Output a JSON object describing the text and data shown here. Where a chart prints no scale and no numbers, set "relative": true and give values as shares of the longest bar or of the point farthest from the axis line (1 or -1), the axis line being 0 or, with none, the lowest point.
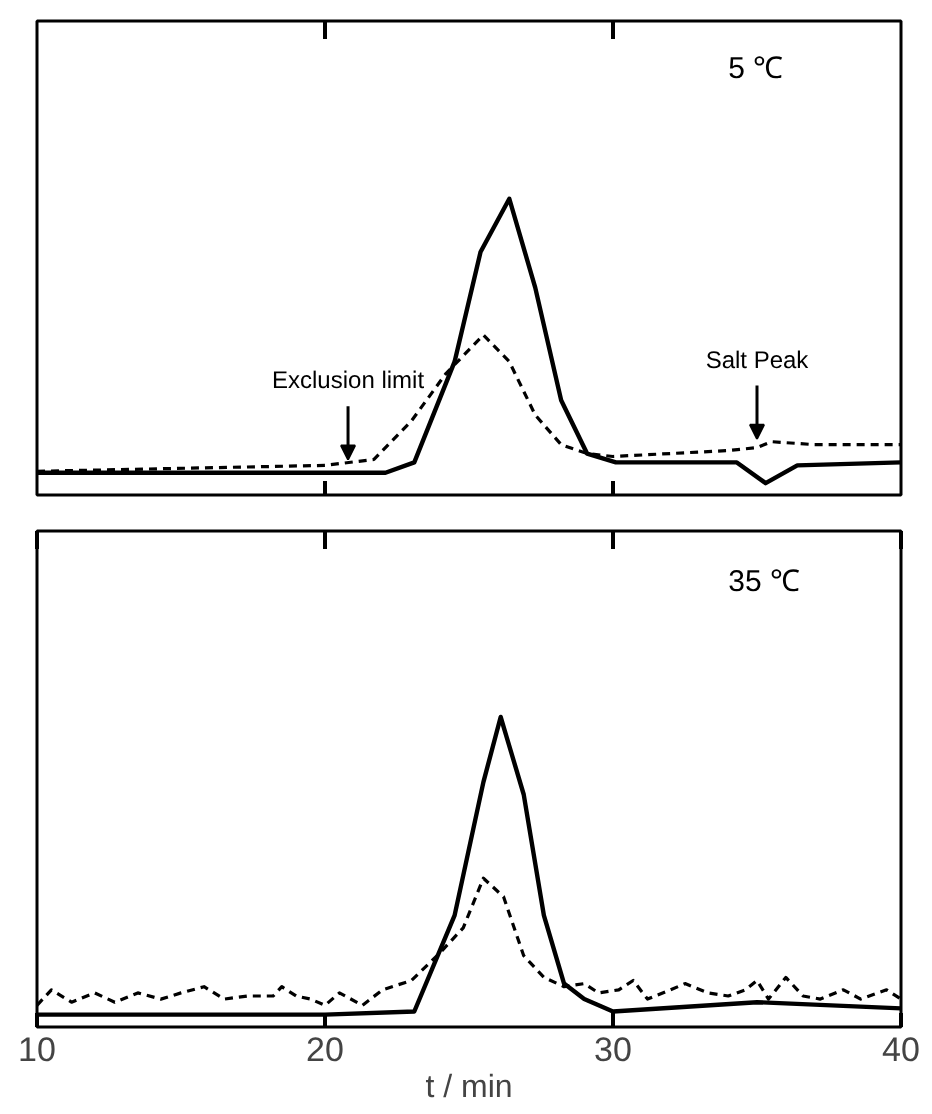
{
  "chart_data": [
    {
      "type": "line",
      "relative": true,
      "xlim": [
        10,
        40
      ],
      "xticks": [
        {
          "value": 20,
          "label": null
        },
        {
          "value": 30,
          "label": null
        }
      ],
      "tick_labels": false,
      "grid": false,
      "x": [
        10,
        22.1,
        23.1,
        24.5,
        25.4,
        26.4,
        27.3,
        28.2,
        29.1,
        30.1,
        34.3,
        35.3,
        36.4,
        40
      ],
      "series": [
        {
          "color": "#000000",
          "line_style": "solid",
          "values": [
            0.075,
            0.075,
            0.11,
            0.45,
            0.82,
            1.0,
            0.7,
            0.32,
            0.14,
            0.11,
            0.11,
            0.04,
            0.1,
            0.11
          ]
        },
        {
          "color": "#000000",
          "line_style": "dashed",
          "x": [
            10,
            20,
            21.7,
            23,
            24.2,
            25.5,
            26.4,
            27.3,
            28.2,
            29.1,
            30,
            32,
            34,
            35,
            35.5,
            37,
            40
          ],
          "values": [
            0.08,
            0.1,
            0.12,
            0.25,
            0.41,
            0.54,
            0.45,
            0.27,
            0.17,
            0.14,
            0.13,
            0.14,
            0.15,
            0.16,
            0.18,
            0.17,
            0.17
          ]
        }
      ],
      "annotations": [
        "5 ℃",
        {
          "text": "Exclusion limit",
          "x": 20.8,
          "y": 0.1
        },
        {
          "text": "Salt Peak",
          "x": 35,
          "y": 0.17
        }
      ]
    },
    {
      "type": "line",
      "relative": true,
      "xlim": [
        10,
        40
      ],
      "xticks": [
        10,
        20,
        30,
        40
      ],
      "tick_labels": "x",
      "xlabel": "t / min",
      "grid": false,
      "x": [
        10,
        20,
        23.1,
        24.5,
        25.5,
        26.1,
        26.9,
        27.6,
        28.3,
        29,
        30,
        35,
        40
      ],
      "series": [
        {
          "color": "#000000",
          "line_style": "solid",
          "values": [
            0.04,
            0.04,
            0.05,
            0.36,
            0.79,
            1.0,
            0.75,
            0.36,
            0.14,
            0.09,
            0.05,
            0.08,
            0.06
          ]
        },
        {
          "color": "#000000",
          "line_style": "dashed",
          "x": [
            10,
            10.5,
            11.2,
            12,
            12.7,
            13.5,
            14.3,
            15,
            15.8,
            16.5,
            17.3,
            18.2,
            18.5,
            19,
            19.5,
            20,
            20.5,
            21.3,
            22,
            23,
            24,
            24.8,
            25.5,
            26.2,
            26.9,
            27.6,
            28.3,
            29,
            29.5,
            30.2,
            30.7,
            31.2,
            32,
            32.5,
            33.3,
            34,
            34.6,
            35,
            35.4,
            36,
            36.6,
            37.2,
            38,
            38.6,
            39.5,
            40
          ],
          "values": [
            0.07,
            0.12,
            0.08,
            0.11,
            0.08,
            0.11,
            0.09,
            0.11,
            0.13,
            0.09,
            0.1,
            0.1,
            0.13,
            0.1,
            0.09,
            0.07,
            0.11,
            0.07,
            0.12,
            0.15,
            0.24,
            0.32,
            0.48,
            0.42,
            0.23,
            0.16,
            0.13,
            0.14,
            0.11,
            0.12,
            0.15,
            0.09,
            0.12,
            0.14,
            0.11,
            0.1,
            0.12,
            0.15,
            0.09,
            0.16,
            0.1,
            0.09,
            0.12,
            0.09,
            0.12,
            0.09
          ]
        }
      ],
      "annotations": [
        "35 ℃"
      ]
    }
  ]
}
